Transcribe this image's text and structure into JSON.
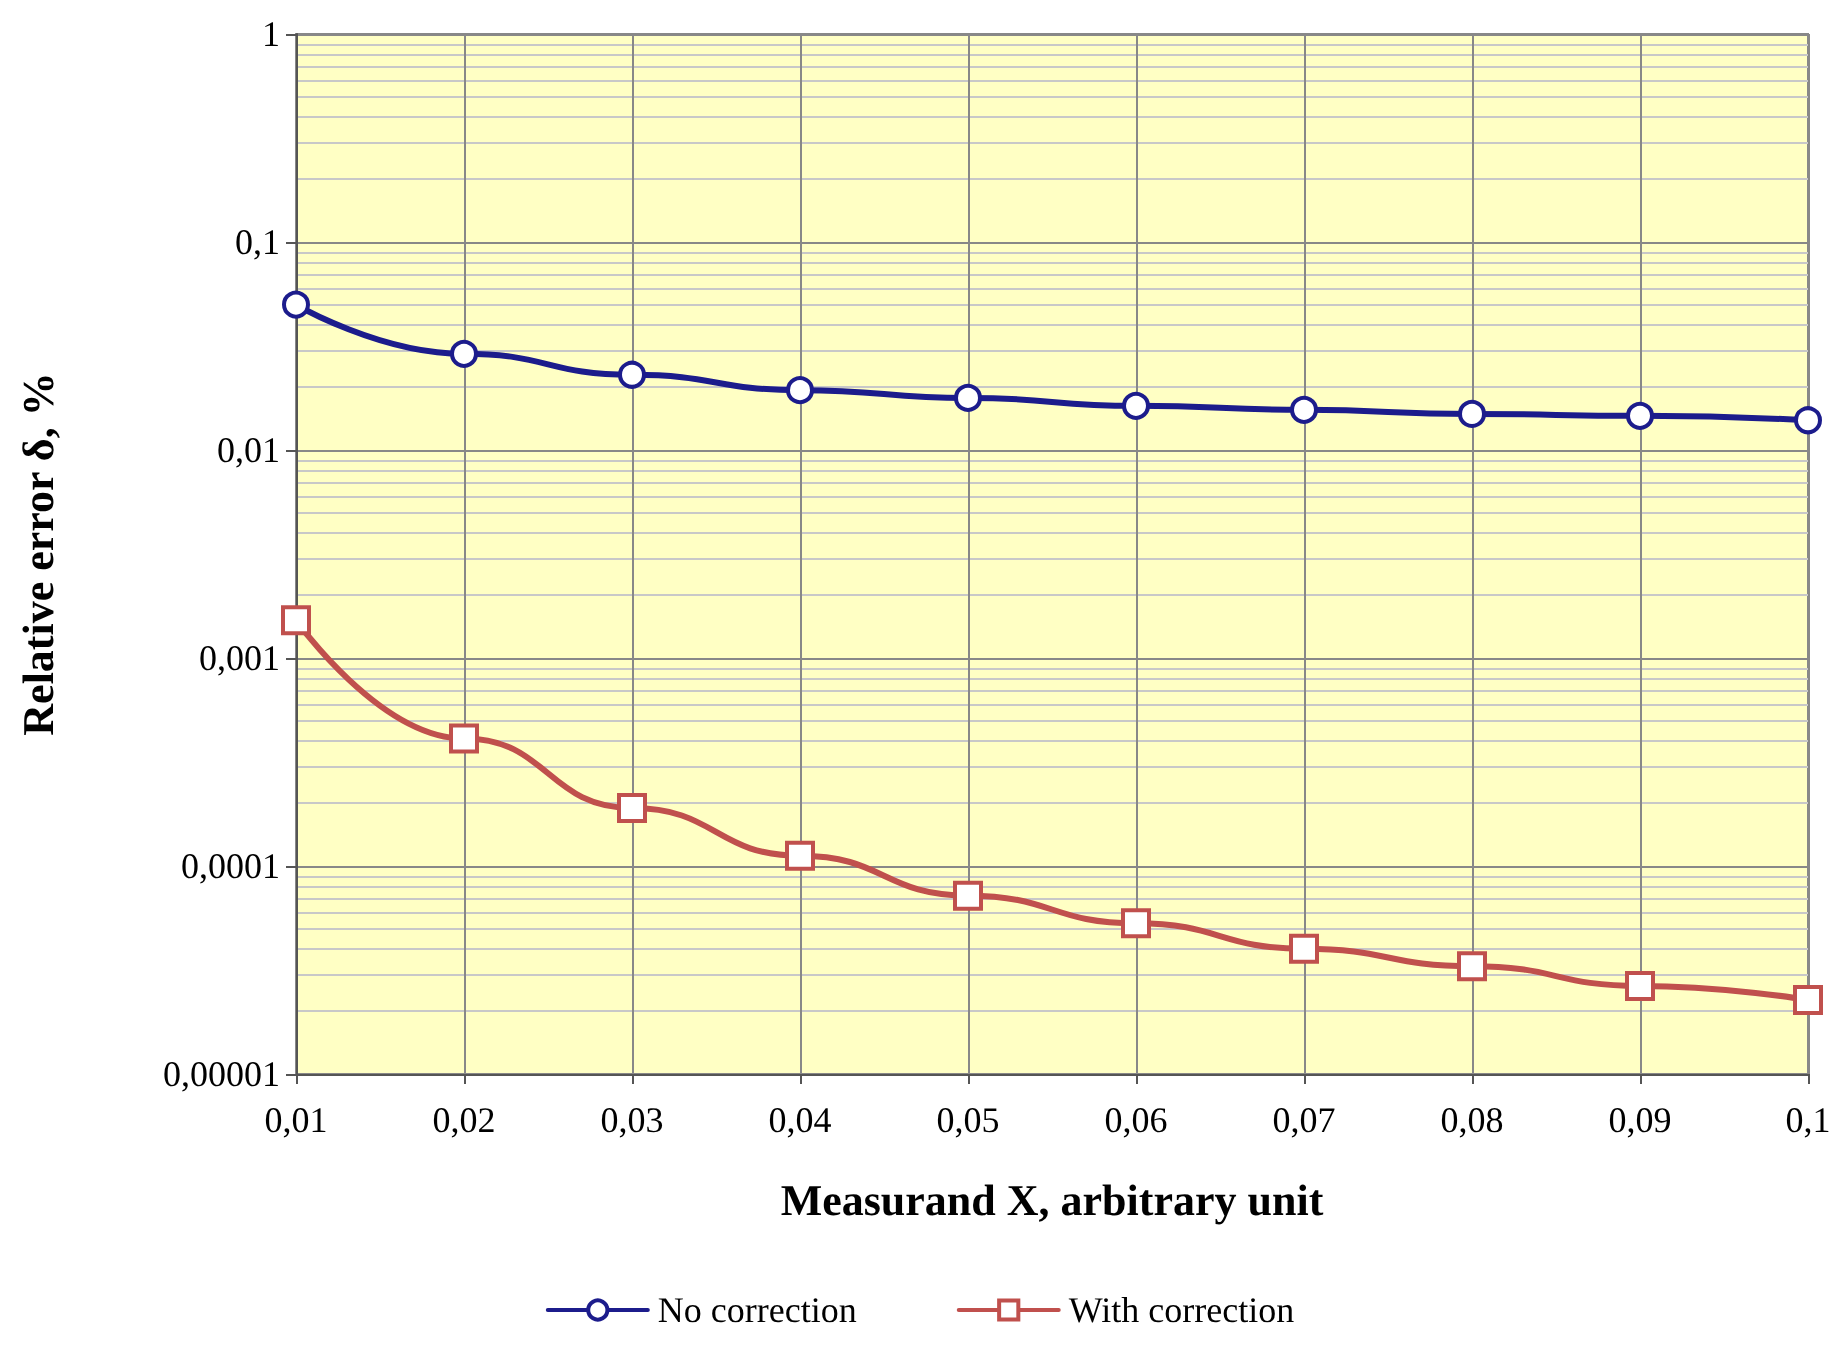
{
  "chart_data": {
    "type": "line",
    "xlabel": "Measurand X, arbitrary unit",
    "ylabel": "Relative error δ, %",
    "x": [
      0.01,
      0.02,
      0.03,
      0.04,
      0.05,
      0.06,
      0.07,
      0.08,
      0.09,
      0.1
    ],
    "series": [
      {
        "name": "No correction",
        "color": "#1c1c8c",
        "marker": "circle",
        "values": [
          0.05,
          0.029,
          0.023,
          0.0194,
          0.0178,
          0.0163,
          0.0156,
          0.0149,
          0.0146,
          0.0139
        ]
      },
      {
        "name": "With correction",
        "color": "#c0504d",
        "marker": "square",
        "values": [
          0.00152,
          0.00041,
          0.00019,
          0.000112,
          7.2e-05,
          5.3e-05,
          4e-05,
          3.3e-05,
          2.65e-05,
          2.27e-05
        ]
      }
    ],
    "log": "y",
    "xlim": [
      0.01,
      0.1
    ],
    "ylim": [
      1e-05,
      1
    ],
    "xticks": [
      {
        "value": 0.01,
        "label": "0,01"
      },
      {
        "value": 0.02,
        "label": "0,02"
      },
      {
        "value": 0.03,
        "label": "0,03"
      },
      {
        "value": 0.04,
        "label": "0,04"
      },
      {
        "value": 0.05,
        "label": "0,05"
      },
      {
        "value": 0.06,
        "label": "0,06"
      },
      {
        "value": 0.07,
        "label": "0,07"
      },
      {
        "value": 0.08,
        "label": "0,08"
      },
      {
        "value": 0.09,
        "label": "0,09"
      },
      {
        "value": 0.1,
        "label": "0,1"
      }
    ],
    "yticks": [
      {
        "value": 1e-05,
        "label": "0,00001"
      },
      {
        "value": 0.0001,
        "label": "0,0001"
      },
      {
        "value": 0.001,
        "label": "0,001"
      },
      {
        "value": 0.01,
        "label": "0,01"
      },
      {
        "value": 0.1,
        "label": "0,1"
      },
      1
    ],
    "grid": true,
    "legend": "bottom",
    "line_style": "solid"
  }
}
